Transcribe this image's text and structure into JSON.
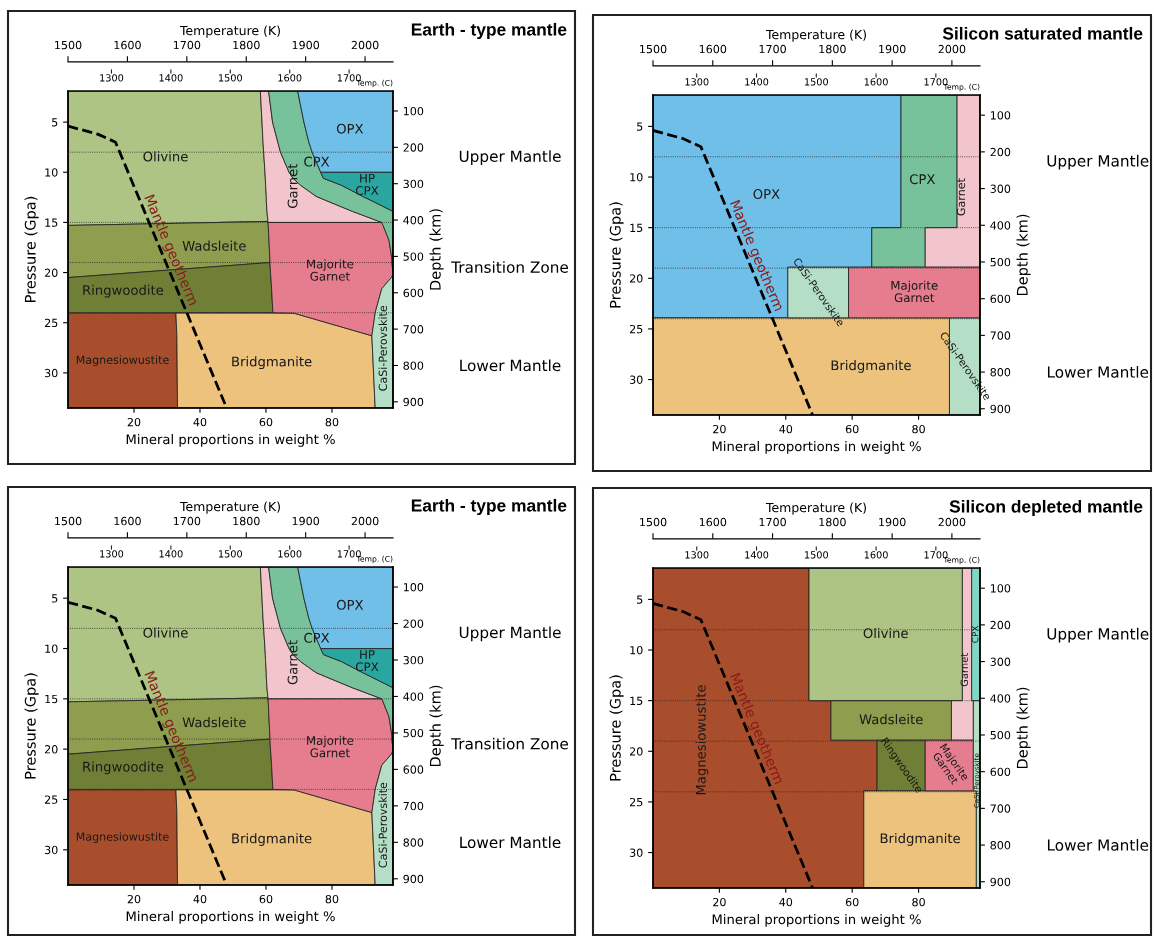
{
  "chart_data": [
    {
      "type": "area",
      "orientation": "horizontal",
      "stacked": true,
      "title": "Earth - type mantle",
      "xlabel": "Mineral proportions in weight %",
      "ylabel": "Pressure (Gpa)",
      "y2label": "Depth (km)",
      "x2label": "Temperature (K)",
      "line_style": "dashed",
      "x": [
        1.9,
        5,
        7,
        8,
        10,
        10.01,
        10.6,
        11.3,
        12.4,
        12.8,
        13.9,
        14.9,
        15.0,
        15.01,
        15.3,
        16.8,
        18.7,
        19.0,
        20.2,
        20.5,
        21.6,
        24.0,
        24.05,
        26.3,
        33.5
      ],
      "xlim": [
        0,
        98.5
      ],
      "xticks": [
        20,
        40,
        60,
        80
      ],
      "ylim": [
        33.5,
        1.9
      ],
      "yticks": [
        5,
        10,
        15,
        20,
        25,
        30
      ],
      "y2lim": [
        917,
        45
      ],
      "y2ticks": [
        100,
        200,
        300,
        400,
        500,
        600,
        700,
        800,
        900
      ],
      "x2lim": [
        1500,
        2047
      ],
      "x2ticks": [
        1500,
        1600,
        1700,
        1800,
        1900,
        2000
      ],
      "series": [
        {
          "name": "Magnesiowustite",
          "color": "#a94e2c",
          "values": [
            null,
            null,
            null,
            null,
            null,
            null,
            null,
            null,
            null,
            null,
            null,
            null,
            null,
            null,
            null,
            null,
            null,
            null,
            null,
            null,
            null,
            null,
            32.7,
            33.0,
            33.2
          ]
        },
        {
          "name": "Olivine",
          "color": "#adc484",
          "values": [
            58.3,
            58.8,
            59.1,
            59.3,
            59.7,
            59.7,
            59.8,
            59.9,
            60.1,
            60.1,
            60.3,
            60.6,
            45.5,
            45.5,
            0,
            null,
            null,
            null,
            null,
            null,
            null,
            null,
            null,
            null,
            null
          ]
        },
        {
          "name": "Wadsleite",
          "color": "#8e9e4e",
          "values": [
            null,
            null,
            null,
            null,
            null,
            null,
            null,
            null,
            null,
            null,
            null,
            0,
            15.1,
            15.1,
            60.7,
            60.9,
            61.2,
            61.2,
            12.2,
            0,
            null,
            null,
            null,
            null,
            null
          ]
        },
        {
          "name": "Ringwoodite",
          "color": "#6f7f35",
          "values": [
            null,
            null,
            null,
            null,
            null,
            null,
            null,
            null,
            null,
            null,
            null,
            null,
            null,
            null,
            null,
            null,
            null,
            0,
            49.2,
            61.5,
            61.7,
            62.1,
            null,
            null,
            null
          ]
        },
        {
          "name": "Bridgmanite",
          "color": "#ecc27c",
          "values": [
            null,
            null,
            null,
            null,
            null,
            null,
            null,
            null,
            null,
            null,
            null,
            null,
            null,
            null,
            null,
            null,
            null,
            null,
            null,
            null,
            null,
            null,
            35.8,
            59.1,
            59.9
          ]
        },
        {
          "name": "Garnet",
          "color": "#f2c4cc",
          "values": [
            2.5,
            3.2,
            4.5,
            5.1,
            7.3,
            7.3,
            8.4,
            10.6,
            15.1,
            18.0,
            25.9,
            33.7,
            34.5,
            null,
            null,
            null,
            null,
            null,
            null,
            null,
            null,
            null,
            null,
            null,
            null
          ]
        },
        {
          "name": "Majorite Garnet",
          "color": "#e57d8e",
          "values": [
            null,
            null,
            null,
            null,
            null,
            null,
            null,
            null,
            null,
            null,
            null,
            null,
            null,
            34.5,
            34.8,
            36.4,
            37.0,
            37.0,
            37.1,
            36.5,
            33.4,
            31.0,
            24.6,
            0,
            null
          ]
        },
        {
          "name": "CPX",
          "color": "#77c29a",
          "values": [
            8.8,
            9.5,
            9.4,
            9.6,
            9.6,
            9.6,
            9.2,
            12.4,
            14.1,
            13.7,
            12.3,
            4.2,
            3.4,
            3.4,
            3.0,
            1.2,
            0.3,
            0.3,
            0,
            null,
            null,
            null,
            null,
            null,
            null
          ]
        },
        {
          "name": "OPX",
          "color": "#6fbfe8",
          "values": [
            28.9,
            27.0,
            25.5,
            24.5,
            21.9,
            null,
            null,
            null,
            null,
            null,
            null,
            null,
            null,
            null,
            null,
            null,
            null,
            null,
            null,
            null,
            null,
            null,
            null,
            null,
            null
          ]
        },
        {
          "name": "HP CPX",
          "color": "#2aa6a0",
          "values": [
            null,
            null,
            null,
            null,
            null,
            21.9,
            21.1,
            15.6,
            9.2,
            6.7,
            0,
            null,
            null,
            null,
            null,
            null,
            null,
            null,
            null,
            null,
            null,
            null,
            null,
            null,
            null
          ]
        },
        {
          "name": "CaSi-Perovskite",
          "color": "#b4dec6",
          "values": [
            null,
            null,
            null,
            null,
            null,
            null,
            null,
            null,
            null,
            null,
            null,
            null,
            null,
            null,
            null,
            null,
            null,
            null,
            0,
            0.5,
            3.4,
            5.4,
            5.4,
            6.4,
            5.4
          ]
        },
        {
          "name": "Mantle geotherm",
          "type": "line",
          "axis": "x2",
          "color": "#000000",
          "x": [
            5.4,
            6.2,
            7.0,
            33.5
          ],
          "values": [
            1500,
            1550,
            1580,
            1767
          ]
        }
      ],
      "ref_lines": [
        {
          "axis": "y",
          "value": 8
        },
        {
          "axis": "y",
          "value": 15
        },
        {
          "axis": "y",
          "value": 19
        },
        {
          "axis": "y",
          "value": 24
        }
      ],
      "annotations": [
        "Temp. (C)",
        "Upper Mantle",
        "Transition Zone",
        "Lower Mantle",
        "1300",
        "1400",
        "1500",
        "1600",
        "1700"
      ]
    },
    {
      "type": "area",
      "orientation": "horizontal",
      "stacked": true,
      "title": "Silicon saturated mantle",
      "xlabel": "Mineral proportions in weight %",
      "ylabel": "Pressure (Gpa)",
      "y2label": "Depth (km)",
      "x2label": "Temperature (K)",
      "line_style": "dashed",
      "x": [
        1.9,
        15.0,
        15.01,
        18.9,
        18.91,
        23.9,
        23.91,
        33.5
      ],
      "xlim": [
        0,
        98.5
      ],
      "xticks": [
        20,
        40,
        60,
        80
      ],
      "ylim": [
        33.5,
        1.9
      ],
      "yticks": [
        5,
        10,
        15,
        20,
        25,
        30
      ],
      "y2lim": [
        917,
        45
      ],
      "y2ticks": [
        100,
        200,
        300,
        400,
        500,
        600,
        700,
        800,
        900
      ],
      "x2lim": [
        1500,
        2047
      ],
      "x2ticks": [
        1500,
        1600,
        1700,
        1800,
        1900,
        2000
      ],
      "series": [
        {
          "name": "OPX",
          "color": "#6fbfe8",
          "values": [
            74.7,
            74.7,
            65.9,
            65.9,
            40.6,
            40.6,
            null,
            null
          ]
        },
        {
          "name": "Bridgmanite",
          "color": "#ecc27c",
          "values": [
            null,
            null,
            null,
            null,
            null,
            null,
            89.3,
            89.3
          ]
        },
        {
          "name": "CaSi-Perovskite",
          "color": "#b4dec6",
          "values": [
            null,
            null,
            null,
            null,
            18.3,
            18.3,
            null,
            null
          ]
        },
        {
          "name": "CaSi-Perovskite",
          "color": "#b4dec6",
          "values": [
            null,
            null,
            null,
            null,
            null,
            null,
            9.2,
            9.2
          ]
        },
        {
          "name": "CPX",
          "color": "#77c29a",
          "values": [
            16.9,
            16.9,
            16.1,
            16.1,
            null,
            null,
            null,
            null
          ]
        },
        {
          "name": "Garnet",
          "color": "#f2c4cc",
          "values": [
            6.9,
            6.9,
            16.5,
            16.5,
            null,
            null,
            null,
            null
          ]
        },
        {
          "name": "Majorite Garnet",
          "color": "#e57d8e",
          "values": [
            null,
            null,
            null,
            null,
            39.6,
            39.6,
            null,
            null
          ]
        },
        {
          "name": "Mantle geotherm",
          "type": "line",
          "axis": "x2",
          "color": "#000000",
          "x": [
            5.4,
            6.2,
            7.0,
            33.5
          ],
          "values": [
            1500,
            1550,
            1580,
            1767
          ]
        }
      ],
      "ref_lines": [
        {
          "axis": "y",
          "value": 8
        },
        {
          "axis": "y",
          "value": 15
        },
        {
          "axis": "y",
          "value": 19
        },
        {
          "axis": "y",
          "value": 24
        }
      ],
      "annotations": [
        "Temp. (C)",
        "Upper Mantle",
        "Lower Mantle",
        "1300",
        "1400",
        "1500",
        "1600",
        "1700"
      ]
    },
    {
      "type": "area",
      "orientation": "horizontal",
      "stacked": true,
      "title": "Earth - type mantle",
      "xlabel": "Mineral proportions in weight %",
      "ylabel": "Pressure (Gpa)",
      "y2label": "Depth (km)",
      "x2label": "Temperature (K)",
      "line_style": "dashed",
      "x": [
        1.9,
        5,
        7,
        8,
        10,
        10.01,
        10.6,
        11.3,
        12.4,
        12.8,
        13.9,
        14.9,
        15.0,
        15.01,
        15.3,
        16.8,
        18.7,
        19.0,
        20.2,
        20.5,
        21.6,
        24.0,
        24.05,
        26.3,
        33.5
      ],
      "xlim": [
        0,
        98.5
      ],
      "xticks": [
        20,
        40,
        60,
        80
      ],
      "ylim": [
        33.5,
        1.9
      ],
      "yticks": [
        5,
        10,
        15,
        20,
        25,
        30
      ],
      "y2lim": [
        917,
        45
      ],
      "y2ticks": [
        100,
        200,
        300,
        400,
        500,
        600,
        700,
        800,
        900
      ],
      "x2lim": [
        1500,
        2047
      ],
      "x2ticks": [
        1500,
        1600,
        1700,
        1800,
        1900,
        2000
      ],
      "series": [
        {
          "name": "Magnesiowustite",
          "color": "#a94e2c",
          "values": [
            null,
            null,
            null,
            null,
            null,
            null,
            null,
            null,
            null,
            null,
            null,
            null,
            null,
            null,
            null,
            null,
            null,
            null,
            null,
            null,
            null,
            null,
            32.7,
            33.0,
            33.2
          ]
        },
        {
          "name": "Olivine",
          "color": "#adc484",
          "values": [
            58.3,
            58.8,
            59.1,
            59.3,
            59.7,
            59.7,
            59.8,
            59.9,
            60.1,
            60.1,
            60.3,
            60.6,
            45.5,
            45.5,
            0,
            null,
            null,
            null,
            null,
            null,
            null,
            null,
            null,
            null,
            null
          ]
        },
        {
          "name": "Wadsleite",
          "color": "#8e9e4e",
          "values": [
            null,
            null,
            null,
            null,
            null,
            null,
            null,
            null,
            null,
            null,
            null,
            0,
            15.1,
            15.1,
            60.7,
            60.9,
            61.2,
            61.2,
            12.2,
            0,
            null,
            null,
            null,
            null,
            null
          ]
        },
        {
          "name": "Ringwoodite",
          "color": "#6f7f35",
          "values": [
            null,
            null,
            null,
            null,
            null,
            null,
            null,
            null,
            null,
            null,
            null,
            null,
            null,
            null,
            null,
            null,
            null,
            0,
            49.2,
            61.5,
            61.7,
            62.1,
            null,
            null,
            null
          ]
        },
        {
          "name": "Bridgmanite",
          "color": "#ecc27c",
          "values": [
            null,
            null,
            null,
            null,
            null,
            null,
            null,
            null,
            null,
            null,
            null,
            null,
            null,
            null,
            null,
            null,
            null,
            null,
            null,
            null,
            null,
            null,
            35.8,
            59.1,
            59.9
          ]
        },
        {
          "name": "Garnet",
          "color": "#f2c4cc",
          "values": [
            2.5,
            3.2,
            4.5,
            5.1,
            7.3,
            7.3,
            8.4,
            10.6,
            15.1,
            18.0,
            25.9,
            33.7,
            34.5,
            null,
            null,
            null,
            null,
            null,
            null,
            null,
            null,
            null,
            null,
            null,
            null
          ]
        },
        {
          "name": "Majorite Garnet",
          "color": "#e57d8e",
          "values": [
            null,
            null,
            null,
            null,
            null,
            null,
            null,
            null,
            null,
            null,
            null,
            null,
            null,
            34.5,
            34.8,
            36.4,
            37.0,
            37.0,
            37.1,
            36.5,
            33.4,
            31.0,
            24.6,
            0,
            null
          ]
        },
        {
          "name": "CPX",
          "color": "#77c29a",
          "values": [
            8.8,
            9.5,
            9.4,
            9.6,
            9.6,
            9.6,
            9.2,
            12.4,
            14.1,
            13.7,
            12.3,
            4.2,
            3.4,
            3.4,
            3.0,
            1.2,
            0.3,
            0.3,
            0,
            null,
            null,
            null,
            null,
            null,
            null
          ]
        },
        {
          "name": "OPX",
          "color": "#6fbfe8",
          "values": [
            28.9,
            27.0,
            25.5,
            24.5,
            21.9,
            null,
            null,
            null,
            null,
            null,
            null,
            null,
            null,
            null,
            null,
            null,
            null,
            null,
            null,
            null,
            null,
            null,
            null,
            null,
            null
          ]
        },
        {
          "name": "HP CPX",
          "color": "#2aa6a0",
          "values": [
            null,
            null,
            null,
            null,
            null,
            21.9,
            21.1,
            15.6,
            9.2,
            6.7,
            0,
            null,
            null,
            null,
            null,
            null,
            null,
            null,
            null,
            null,
            null,
            null,
            null,
            null,
            null
          ]
        },
        {
          "name": "CaSi-Perovskite",
          "color": "#b4dec6",
          "values": [
            null,
            null,
            null,
            null,
            null,
            null,
            null,
            null,
            null,
            null,
            null,
            null,
            null,
            null,
            null,
            null,
            null,
            null,
            0,
            0.5,
            3.4,
            5.4,
            5.4,
            6.4,
            5.4
          ]
        },
        {
          "name": "Mantle geotherm",
          "type": "line",
          "axis": "x2",
          "color": "#000000",
          "x": [
            5.4,
            6.2,
            7.0,
            33.5
          ],
          "values": [
            1500,
            1550,
            1580,
            1767
          ]
        }
      ],
      "ref_lines": [
        {
          "axis": "y",
          "value": 8
        },
        {
          "axis": "y",
          "value": 15
        },
        {
          "axis": "y",
          "value": 19
        },
        {
          "axis": "y",
          "value": 24
        }
      ],
      "annotations": [
        "Temp. (C)",
        "Upper Mantle",
        "Transition Zone",
        "Lower Mantle",
        "1300",
        "1400",
        "1500",
        "1600",
        "1700"
      ]
    },
    {
      "type": "area",
      "orientation": "horizontal",
      "stacked": true,
      "title": "Silicon depleted mantle",
      "xlabel": "Mineral proportions in weight %",
      "ylabel": "Pressure (Gpa)",
      "y2label": "Depth (km)",
      "x2label": "Temperature (K)",
      "line_style": "dashed",
      "x": [
        1.9,
        15.0,
        15.01,
        18.9,
        18.91,
        23.9,
        23.91,
        33.5
      ],
      "xlim": [
        0,
        98.5
      ],
      "xticks": [
        20,
        40,
        60,
        80
      ],
      "ylim": [
        33.5,
        1.9
      ],
      "yticks": [
        5,
        10,
        15,
        20,
        25,
        30
      ],
      "y2lim": [
        917,
        45
      ],
      "y2ticks": [
        100,
        200,
        300,
        400,
        500,
        600,
        700,
        800,
        900
      ],
      "x2lim": [
        1500,
        2047
      ],
      "x2ticks": [
        1500,
        1600,
        1700,
        1800,
        1900,
        2000
      ],
      "series": [
        {
          "name": "Magnesiowustite",
          "color": "#a94e2c",
          "values": [
            47.0,
            47.0,
            53.6,
            53.6,
            67.5,
            67.5,
            63.5,
            63.5
          ]
        },
        {
          "name": "Olivine",
          "color": "#adc484",
          "values": [
            46.2,
            46.2,
            null,
            null,
            null,
            null,
            null,
            null
          ]
        },
        {
          "name": "Wadsleite",
          "color": "#8e9e4e",
          "values": [
            null,
            null,
            36.3,
            36.3,
            null,
            null,
            null,
            null
          ]
        },
        {
          "name": "Ringwoodite",
          "color": "#6f7f35",
          "values": [
            null,
            null,
            null,
            null,
            14.5,
            14.5,
            null,
            null
          ]
        },
        {
          "name": "Bridgmanite",
          "color": "#ecc27c",
          "values": [
            null,
            null,
            null,
            null,
            null,
            null,
            33.9,
            33.9
          ]
        },
        {
          "name": "Garnet",
          "color": "#f2c4cc",
          "values": [
            2.8,
            2.8,
            6.6,
            6.6,
            null,
            null,
            null,
            null
          ]
        },
        {
          "name": "Majorite Garnet",
          "color": "#e57d8e",
          "values": [
            null,
            null,
            null,
            null,
            14.5,
            14.5,
            null,
            null
          ]
        },
        {
          "name": "CPX",
          "color": "#7ed7c4",
          "values": [
            2.5,
            2.5,
            null,
            null,
            null,
            null,
            null,
            null
          ]
        },
        {
          "name": "CaSi-Perovskite",
          "color": "#b4dec6",
          "values": [
            null,
            null,
            2.0,
            2.0,
            2.0,
            2.0,
            1.1,
            1.1
          ]
        },
        {
          "name": "Mantle geotherm",
          "type": "line",
          "axis": "x2",
          "color": "#000000",
          "x": [
            5.4,
            6.2,
            7.0,
            33.5
          ],
          "values": [
            1500,
            1550,
            1580,
            1767
          ]
        }
      ],
      "ref_lines": [
        {
          "axis": "y",
          "value": 8
        },
        {
          "axis": "y",
          "value": 15
        },
        {
          "axis": "y",
          "value": 19
        },
        {
          "axis": "y",
          "value": 24
        }
      ],
      "annotations": [
        "Temp. (C)",
        "Upper Mantle",
        "Lower Mantle",
        "1300",
        "1400",
        "1500",
        "1600",
        "1700"
      ]
    }
  ]
}
